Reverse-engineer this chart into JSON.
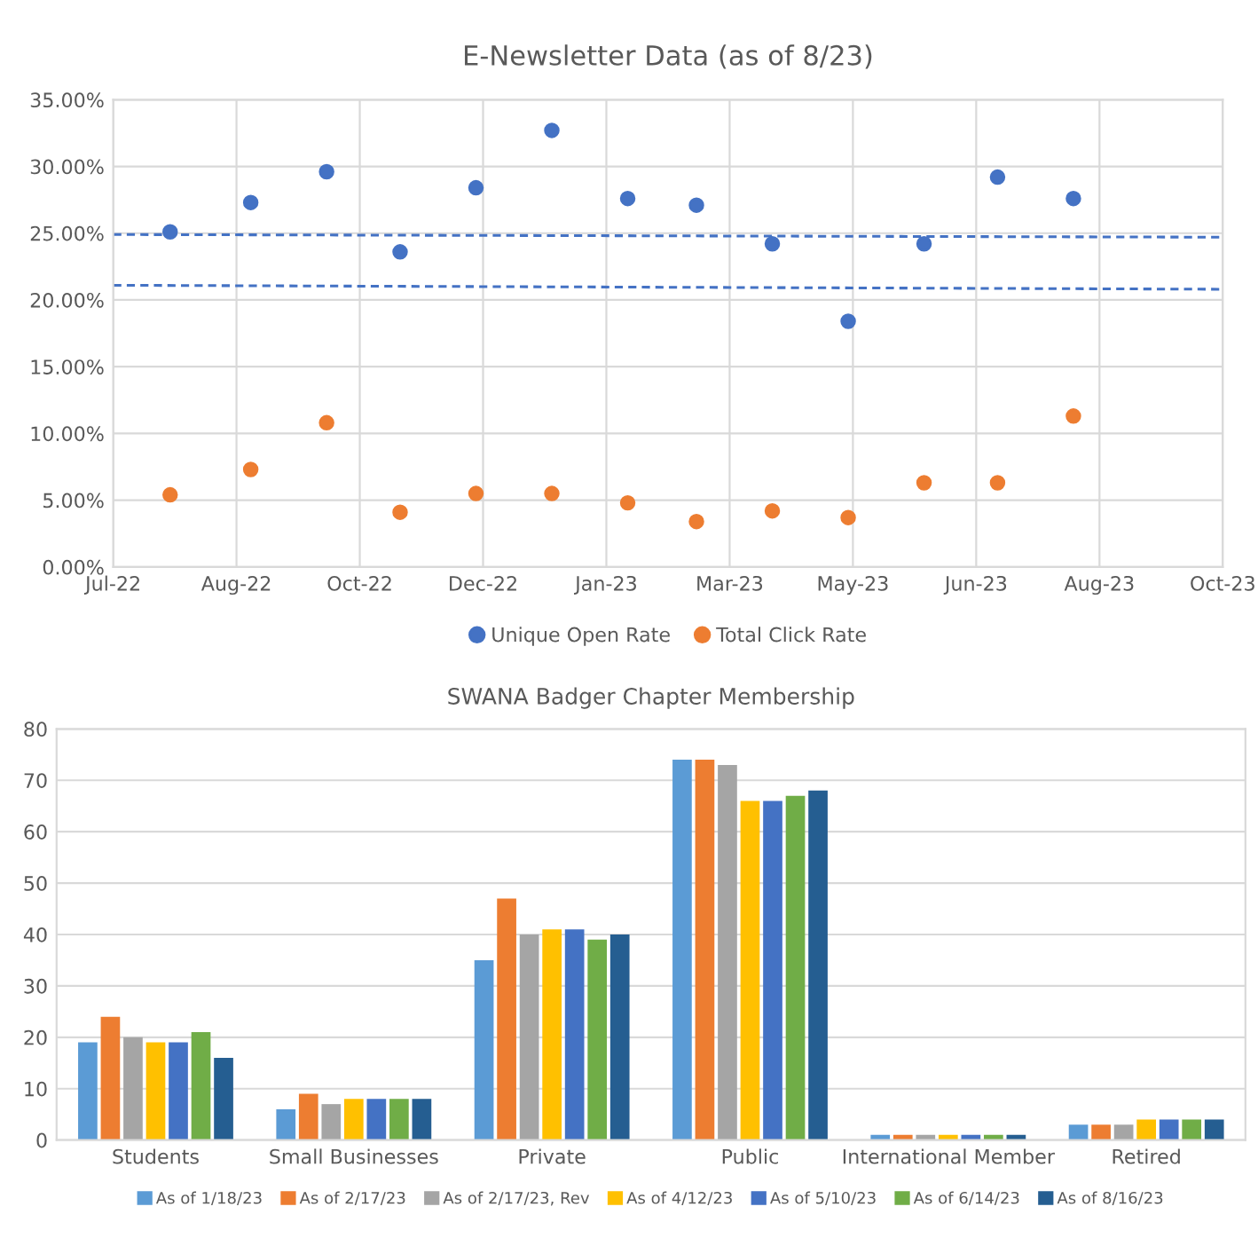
{
  "chart_data": [
    {
      "type": "scatter",
      "title": "E-Newsletter Data (as of 8/23)",
      "series": [
        {
          "name": "Unique Open Rate",
          "color": "#4472c4",
          "x": [
            "2022-07-25",
            "2022-08-28",
            "2022-09-29",
            "2022-10-30",
            "2022-12-01",
            "2023-01-02",
            "2023-02-03",
            "2023-03-04",
            "2023-04-05",
            "2023-05-07",
            "2023-06-08",
            "2023-07-09",
            "2023-08-10"
          ],
          "values": [
            25.1,
            27.3,
            29.6,
            23.6,
            28.4,
            32.7,
            27.6,
            27.1,
            24.2,
            18.4,
            24.2,
            29.2,
            27.6
          ]
        },
        {
          "name": "Total Click Rate",
          "color": "#ed7d31",
          "x": [
            "2022-07-25",
            "2022-08-28",
            "2022-09-29",
            "2022-10-30",
            "2022-12-01",
            "2023-01-02",
            "2023-02-03",
            "2023-03-04",
            "2023-04-05",
            "2023-05-07",
            "2023-06-08",
            "2023-07-09",
            "2023-08-10"
          ],
          "values": [
            5.4,
            7.3,
            10.8,
            4.1,
            5.5,
            5.5,
            4.8,
            3.4,
            4.2,
            3.7,
            6.3,
            6.3,
            11.3
          ]
        },
        {
          "type": "line",
          "line_style": "dashed",
          "color": "#4472c4",
          "x": [
            "2022-07-01",
            "2023-10-12"
          ],
          "values": [
            24.9,
            24.7
          ],
          "marker": "none"
        },
        {
          "type": "line",
          "line_style": "dashed",
          "color": "#4472c4",
          "x": [
            "2022-07-01",
            "2023-10-12"
          ],
          "values": [
            21.1,
            20.8
          ],
          "marker": "none"
        }
      ],
      "marker": "circle",
      "xlim": [
        "2022-07-01",
        "2023-10-12"
      ],
      "xticks": [
        {
          "value": "2022-07-01",
          "label": "Jul-22"
        },
        {
          "value": "2022-08-22",
          "label": "Aug-22"
        },
        {
          "value": "2022-10-13",
          "label": "Oct-22"
        },
        {
          "value": "2022-12-04",
          "label": "Dec-22"
        },
        {
          "value": "2023-01-25",
          "label": "Jan-23"
        },
        {
          "value": "2023-03-18",
          "label": "Mar-23"
        },
        {
          "value": "2023-05-09",
          "label": "May-23"
        },
        {
          "value": "2023-06-30",
          "label": "Jun-23"
        },
        {
          "value": "2023-08-21",
          "label": "Aug-23"
        },
        {
          "value": "2023-10-12",
          "label": "Oct-23"
        }
      ],
      "ylim": [
        0,
        35
      ],
      "yticks": [
        {
          "value": 0,
          "label": "0.00%"
        },
        {
          "value": 5,
          "label": "5.00%"
        },
        {
          "value": 10,
          "label": "10.00%"
        },
        {
          "value": 15,
          "label": "15.00%"
        },
        {
          "value": 20,
          "label": "20.00%"
        },
        {
          "value": 25,
          "label": "25.00%"
        },
        {
          "value": 30,
          "label": "30.00%"
        },
        {
          "value": 35,
          "label": "35.00%"
        }
      ],
      "grid": true,
      "legend": "bottom"
    },
    {
      "type": "bar",
      "title": "SWANA Badger Chapter Membership",
      "categories": [
        "Students",
        "Small Businesses",
        "Private",
        "Public",
        "International Member",
        "Retired"
      ],
      "series": [
        {
          "name": "As of 1/18/23",
          "color": "#5b9bd5",
          "values": [
            19,
            6,
            35,
            74,
            1,
            3
          ]
        },
        {
          "name": "As of 2/17/23",
          "color": "#ed7d31",
          "values": [
            24,
            9,
            47,
            74,
            1,
            3
          ]
        },
        {
          "name": "As of 2/17/23, Rev",
          "color": "#a5a5a5",
          "values": [
            20,
            7,
            40,
            73,
            1,
            3
          ]
        },
        {
          "name": "As of 4/12/23",
          "color": "#ffc000",
          "values": [
            19,
            8,
            41,
            66,
            1,
            4
          ]
        },
        {
          "name": "As of 5/10/23",
          "color": "#4472c4",
          "values": [
            19,
            8,
            41,
            66,
            1,
            4
          ]
        },
        {
          "name": "As of 6/14/23",
          "color": "#70ad47",
          "values": [
            21,
            8,
            39,
            67,
            1,
            4
          ]
        },
        {
          "name": "As of 8/16/23",
          "color": "#255e91",
          "values": [
            16,
            8,
            40,
            68,
            1,
            4
          ]
        }
      ],
      "ylim": [
        0,
        80
      ],
      "yticks": [
        0,
        10,
        20,
        30,
        40,
        50,
        60,
        70,
        80
      ],
      "grid": "y",
      "legend": "bottom"
    }
  ]
}
